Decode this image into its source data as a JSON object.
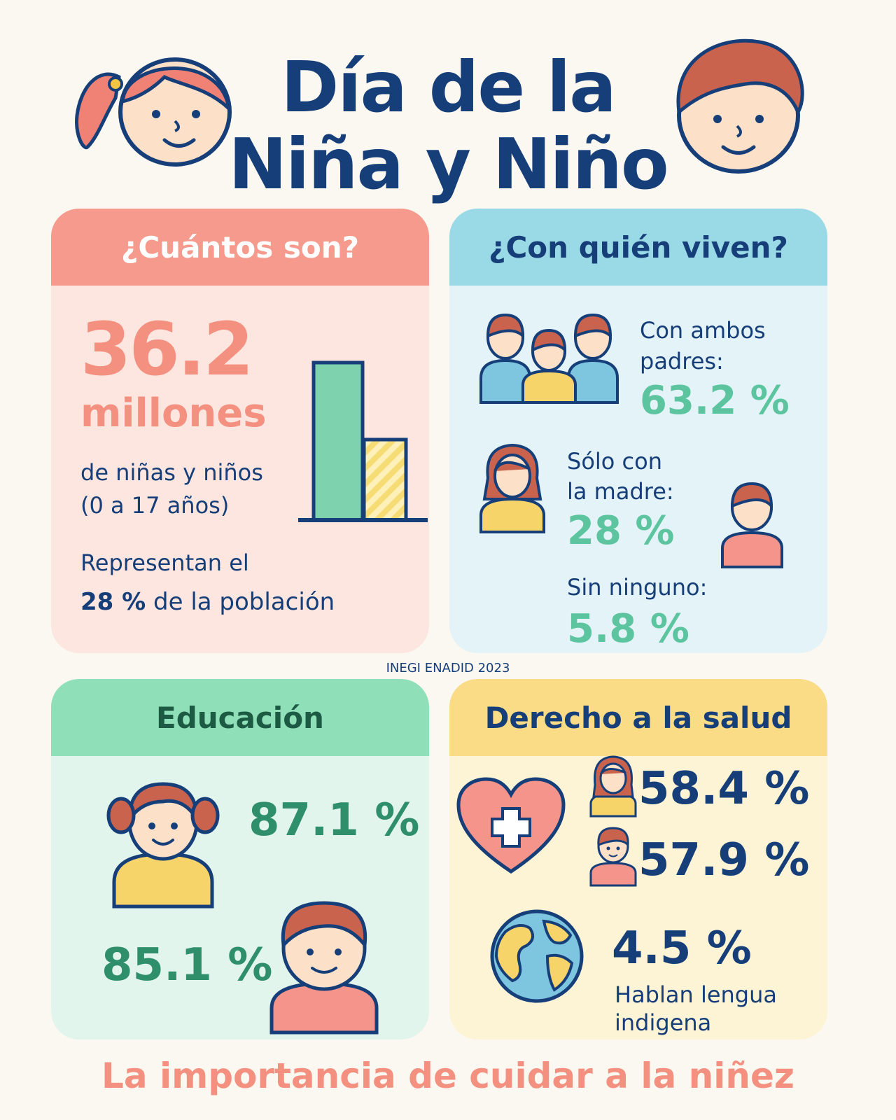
{
  "title": {
    "line1": "Día de la",
    "line2": "Niña y Niño"
  },
  "source": "INEGI ENADID 2023",
  "footer": "La importancia de cuidar a la niñez",
  "colors": {
    "navy": "#163e78",
    "coral": "#f4948a",
    "teal": "#3aa88a",
    "green": "#2f8f6a"
  },
  "card_count": {
    "heading": "¿Cuántos son?",
    "big_number": "36.2",
    "unit": "millones",
    "desc1": "de niñas y niños",
    "desc2": "(0 a 17 años)",
    "rep1": "Representan el",
    "rep_pct": "28 %",
    "rep2": "de la población"
  },
  "card_living": {
    "heading": "¿Con quién viven?",
    "both_l1": "Con ambos",
    "both_l2": "padres:",
    "both_pct": "63.2 %",
    "mother_l1": "Sólo con",
    "mother_l2": "la madre:",
    "mother_pct": "28 %",
    "none_l": "Sin ninguno:",
    "none_pct": "5.8 %"
  },
  "card_edu": {
    "heading": "Educación",
    "girls_pct": "87.1 %",
    "boys_pct": "85.1 %"
  },
  "card_health": {
    "heading": "Derecho a la salud",
    "girls_pct": "58.4 %",
    "boys_pct": "57.9 %",
    "indig_pct": "4.5 %",
    "indig_l1": "Hablan lengua",
    "indig_l2": "indigena"
  }
}
